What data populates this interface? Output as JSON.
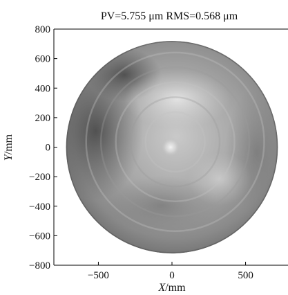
{
  "chart_data": {
    "type": "heatmap",
    "title": "PV=5.755 μm RMS=0.568 μm",
    "xlabel_var": "X",
    "xlabel_unit": "/mm",
    "ylabel_var": "Y",
    "ylabel_unit": "/mm",
    "xlim": [
      -800,
      800
    ],
    "ylim": [
      -800,
      800
    ],
    "x_ticks": [
      -500,
      0,
      500
    ],
    "y_ticks": [
      800,
      600,
      400,
      200,
      0,
      -200,
      -400,
      -600,
      -800
    ],
    "aperture_radius": 720,
    "colormap": "grayscale",
    "grid": false,
    "legend": "none"
  }
}
